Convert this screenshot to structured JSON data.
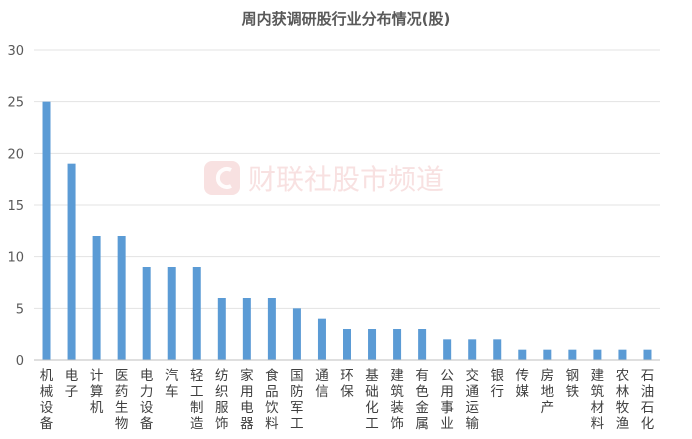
{
  "chart_data": {
    "type": "bar",
    "title": "周内获调研股行业分布情况(股)",
    "xlabel": "",
    "ylabel": "",
    "ylim": [
      0,
      30
    ],
    "yticks": [
      0,
      5,
      10,
      15,
      20,
      25,
      30
    ],
    "grid": true,
    "legend": "none",
    "bar_color": "#5b9bd5",
    "categories": [
      "机械设备",
      "电子",
      "计算机",
      "医药生物",
      "电力设备",
      "汽车",
      "轻工制造",
      "纺织服饰",
      "家用电器",
      "食品饮料",
      "国防军工",
      "通信",
      "环保",
      "基础化工",
      "建筑装饰",
      "有色金属",
      "公用事业",
      "交通运输",
      "银行",
      "传媒",
      "房地产",
      "钢铁",
      "建筑材料",
      "农林牧渔",
      "石油石化"
    ],
    "values": [
      25,
      19,
      12,
      12,
      9,
      9,
      9,
      6,
      6,
      6,
      5,
      4,
      3,
      3,
      3,
      3,
      2,
      2,
      2,
      1,
      1,
      1,
      1,
      1,
      1
    ]
  },
  "watermark": {
    "text": "财联社股市频道",
    "logo_icon": "cailian-logo-icon"
  }
}
